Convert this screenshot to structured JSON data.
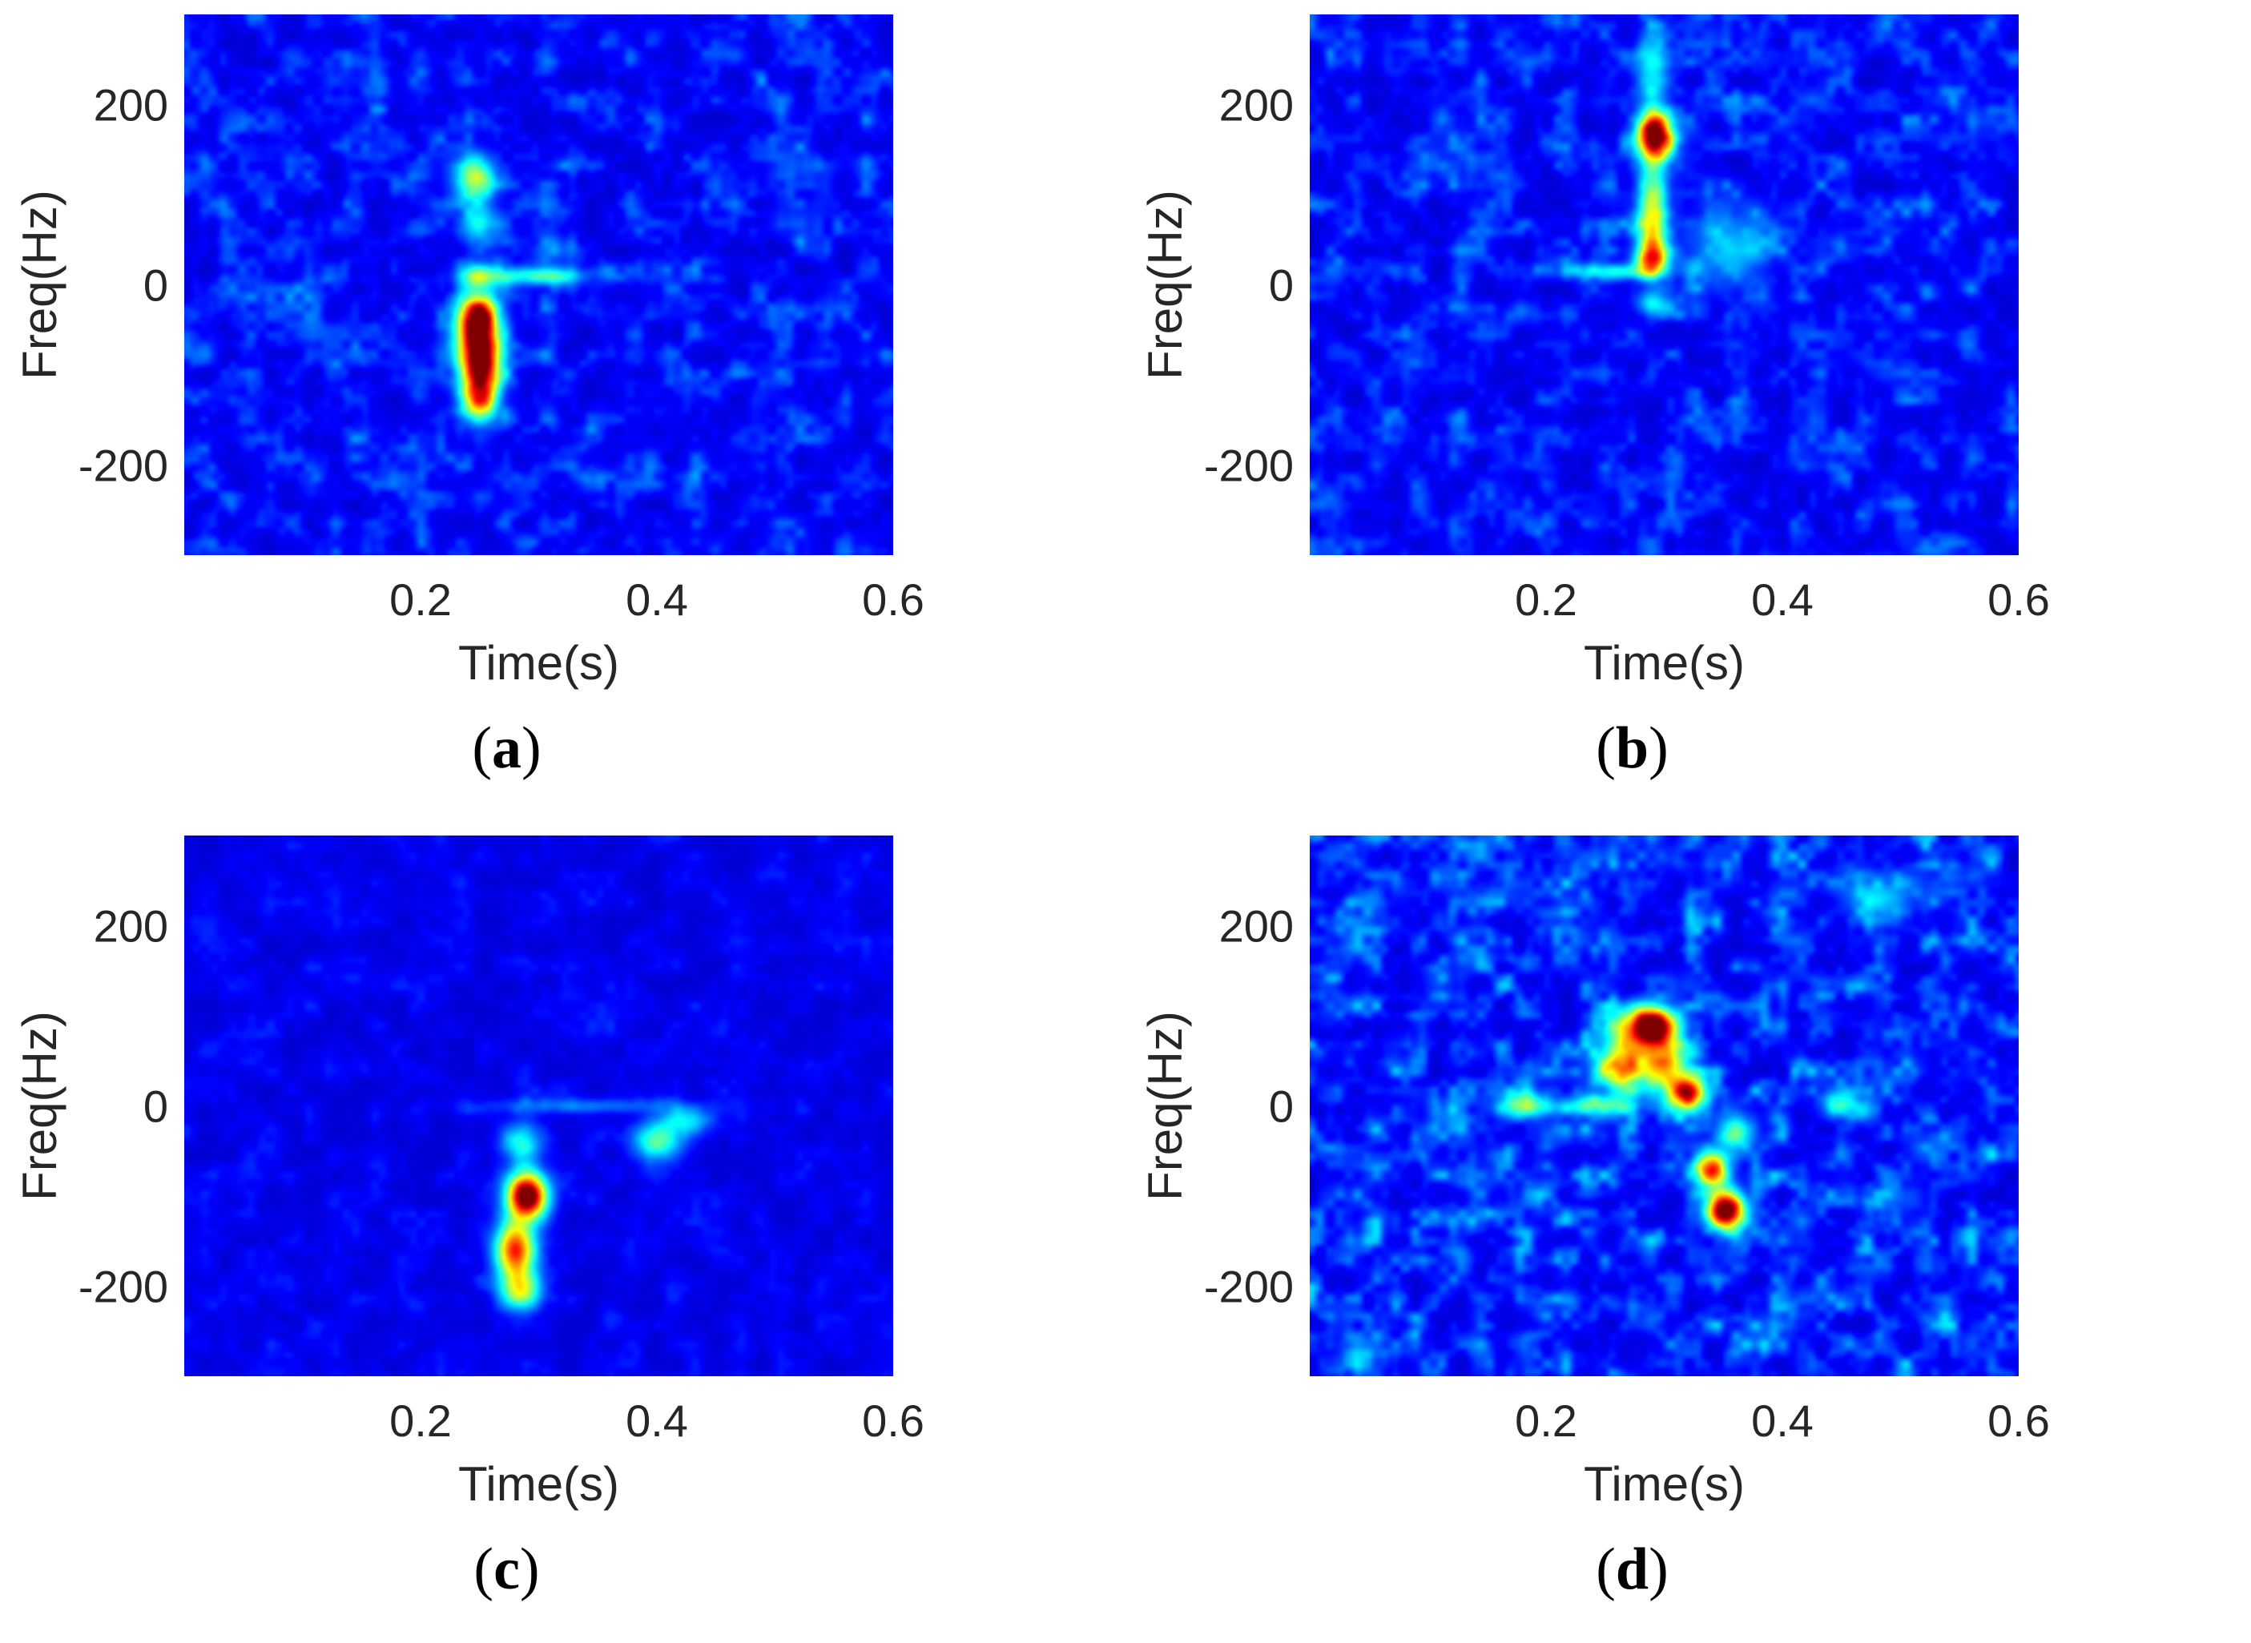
{
  "colors": {
    "background_colormap_low": "#00008f",
    "colormap": "jet",
    "axes_text": "#262626"
  },
  "axes_common": {
    "xlabel": "Time(s)",
    "ylabel": "Freq(Hz)",
    "xlim": [
      0,
      0.6
    ],
    "ylim": [
      -300,
      300
    ],
    "xticks": [
      0.2,
      0.4,
      0.6
    ],
    "xtick_labels": [
      "0.2",
      "0.4",
      "0.6"
    ],
    "yticks": [
      200,
      0,
      -200
    ],
    "ytick_labels": [
      "200",
      "0",
      "-200"
    ]
  },
  "chart_data": [
    {
      "type": "heatmap",
      "caption": "(a)",
      "caption_letter": "a",
      "xlabel": "Time(s)",
      "ylabel": "Freq(Hz)",
      "xlim": [
        0,
        0.6
      ],
      "ylim": [
        -300,
        300
      ],
      "noise_level": 0.22,
      "blobs": [
        {
          "t": 0.25,
          "f": -80,
          "st": 0.012,
          "sf": 35,
          "a": 1.0
        },
        {
          "t": 0.247,
          "f": -35,
          "st": 0.012,
          "sf": 18,
          "a": 0.55
        },
        {
          "t": 0.248,
          "f": 10,
          "st": 0.01,
          "sf": 10,
          "a": 0.35
        },
        {
          "t": 0.245,
          "f": 120,
          "st": 0.012,
          "sf": 18,
          "a": 0.45
        },
        {
          "t": 0.25,
          "f": 70,
          "st": 0.01,
          "sf": 18,
          "a": 0.25
        },
        {
          "t": 0.3,
          "f": 10,
          "st": 0.03,
          "sf": 7,
          "a": 0.3
        },
        {
          "t": 0.25,
          "f": -130,
          "st": 0.01,
          "sf": 15,
          "a": 0.35
        }
      ]
    },
    {
      "type": "heatmap",
      "caption": "(b)",
      "caption_letter": "b",
      "xlabel": "Time(s)",
      "ylabel": "Freq(Hz)",
      "xlim": [
        0,
        0.6
      ],
      "ylim": [
        -300,
        300
      ],
      "noise_level": 0.22,
      "blobs": [
        {
          "t": 0.292,
          "f": 165,
          "st": 0.01,
          "sf": 18,
          "a": 1.0
        },
        {
          "t": 0.29,
          "f": 80,
          "st": 0.009,
          "sf": 40,
          "a": 0.5
        },
        {
          "t": 0.29,
          "f": 30,
          "st": 0.01,
          "sf": 12,
          "a": 0.5
        },
        {
          "t": 0.29,
          "f": 240,
          "st": 0.01,
          "sf": 30,
          "a": 0.25
        },
        {
          "t": 0.26,
          "f": 15,
          "st": 0.025,
          "sf": 6,
          "a": 0.3
        },
        {
          "t": 0.355,
          "f": 40,
          "st": 0.025,
          "sf": 30,
          "a": 0.22
        },
        {
          "t": 0.29,
          "f": -20,
          "st": 0.01,
          "sf": 10,
          "a": 0.25
        }
      ]
    },
    {
      "type": "heatmap",
      "caption": "(c)",
      "caption_letter": "c",
      "xlabel": "Time(s)",
      "ylabel": "Freq(Hz)",
      "xlim": [
        0,
        0.6
      ],
      "ylim": [
        -300,
        300
      ],
      "noise_level": 0.1,
      "blobs": [
        {
          "t": 0.29,
          "f": -100,
          "st": 0.012,
          "sf": 18,
          "a": 1.0
        },
        {
          "t": 0.28,
          "f": -160,
          "st": 0.012,
          "sf": 22,
          "a": 0.75
        },
        {
          "t": 0.285,
          "f": -205,
          "st": 0.012,
          "sf": 15,
          "a": 0.45
        },
        {
          "t": 0.285,
          "f": -40,
          "st": 0.012,
          "sf": 15,
          "a": 0.3
        },
        {
          "t": 0.4,
          "f": -40,
          "st": 0.015,
          "sf": 15,
          "a": 0.35
        },
        {
          "t": 0.425,
          "f": -15,
          "st": 0.015,
          "sf": 10,
          "a": 0.25
        },
        {
          "t": 0.34,
          "f": 0,
          "st": 0.06,
          "sf": 6,
          "a": 0.15
        }
      ]
    },
    {
      "type": "heatmap",
      "caption": "(d)",
      "caption_letter": "d",
      "xlabel": "Time(s)",
      "ylabel": "Freq(Hz)",
      "xlim": [
        0,
        0.6
      ],
      "ylim": [
        -300,
        300
      ],
      "noise_level": 0.3,
      "blobs": [
        {
          "t": 0.29,
          "f": 88,
          "st": 0.015,
          "sf": 15,
          "a": 1.0
        },
        {
          "t": 0.352,
          "f": -115,
          "st": 0.011,
          "sf": 15,
          "a": 1.0
        },
        {
          "t": 0.32,
          "f": 15,
          "st": 0.01,
          "sf": 12,
          "a": 0.85
        },
        {
          "t": 0.34,
          "f": -70,
          "st": 0.01,
          "sf": 14,
          "a": 0.7
        },
        {
          "t": 0.265,
          "f": 50,
          "st": 0.015,
          "sf": 25,
          "a": 0.55
        },
        {
          "t": 0.3,
          "f": 45,
          "st": 0.012,
          "sf": 20,
          "a": 0.55
        },
        {
          "t": 0.18,
          "f": 0,
          "st": 0.015,
          "sf": 10,
          "a": 0.4
        },
        {
          "t": 0.24,
          "f": 0,
          "st": 0.025,
          "sf": 8,
          "a": 0.3
        },
        {
          "t": 0.36,
          "f": -30,
          "st": 0.012,
          "sf": 15,
          "a": 0.35
        },
        {
          "t": 0.45,
          "f": 0,
          "st": 0.012,
          "sf": 10,
          "a": 0.3
        },
        {
          "t": 0.48,
          "f": 230,
          "st": 0.02,
          "sf": 15,
          "a": 0.25
        }
      ]
    }
  ]
}
